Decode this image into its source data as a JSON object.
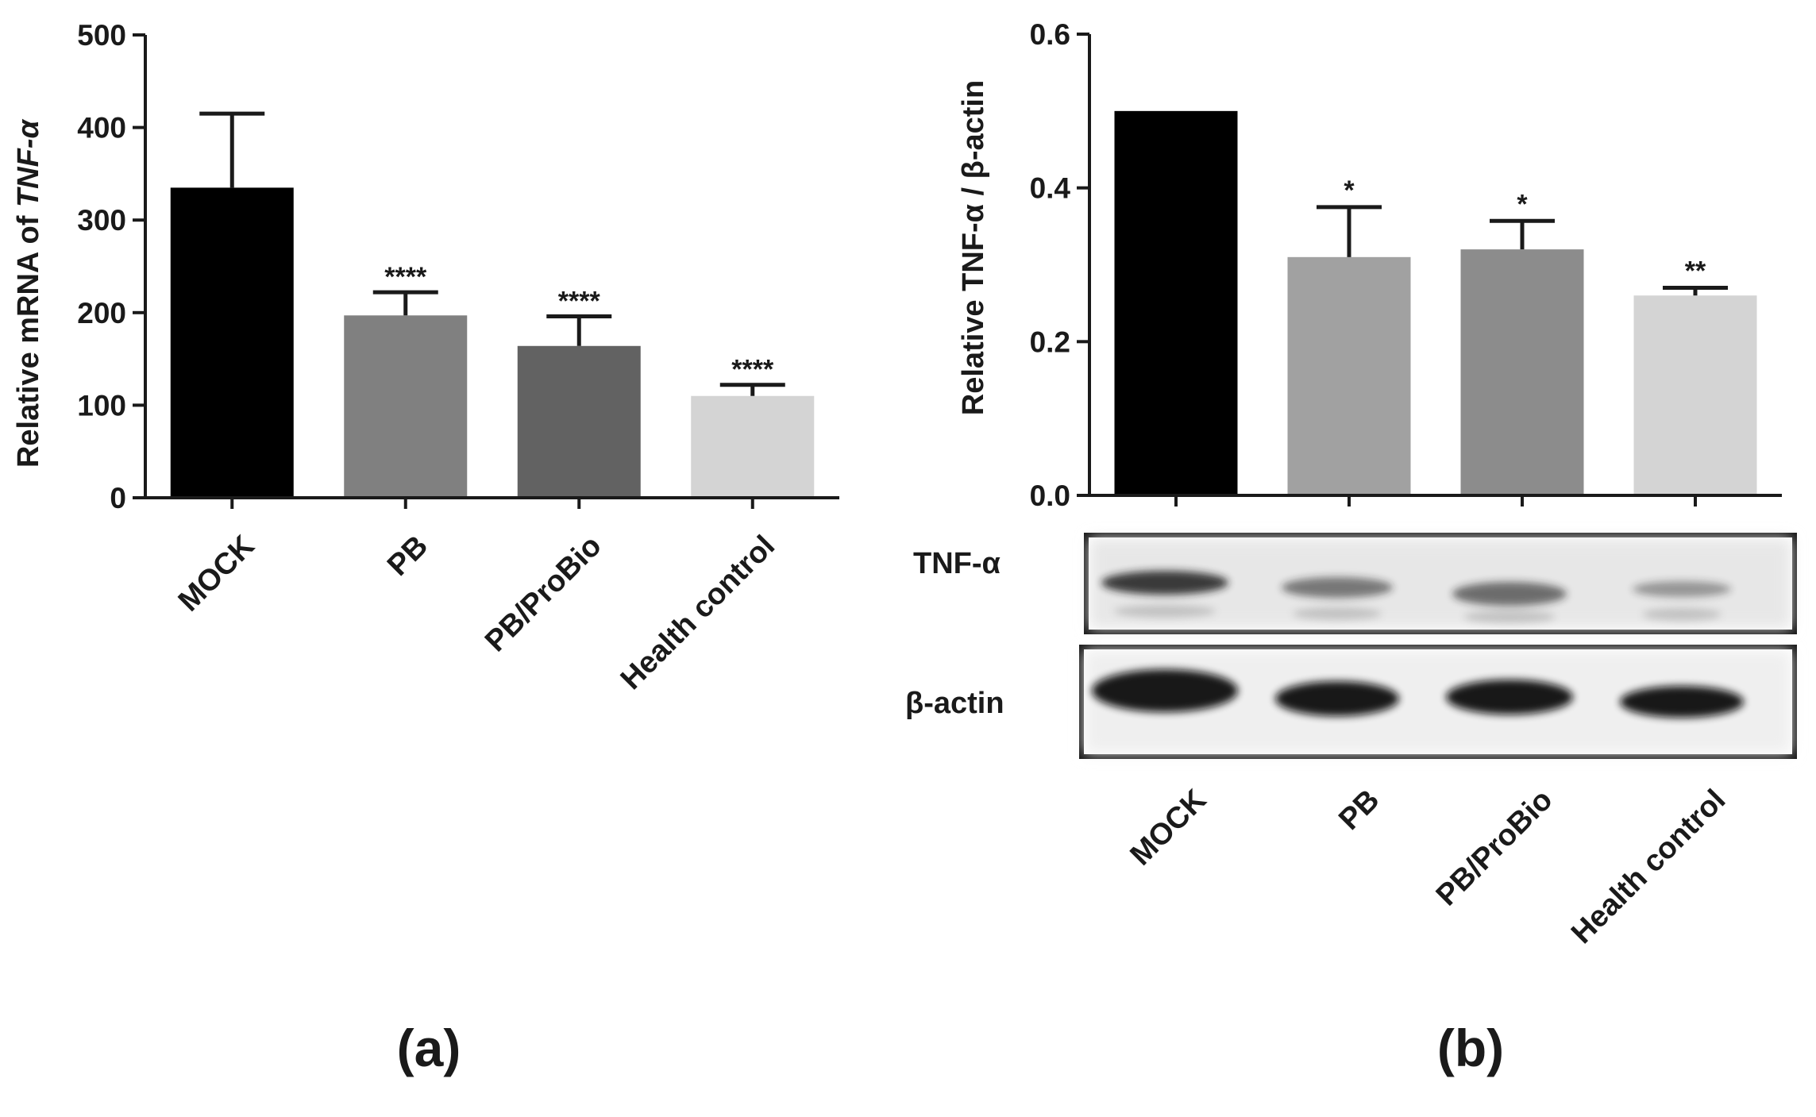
{
  "chart_data": [
    {
      "panel": "(a)",
      "type": "bar",
      "ylabel": "Relative mRNA of TNF-α",
      "ylabel_plain": "Relative mRNA of ",
      "ylabel_italic": "TNF-α",
      "ylim": [
        0,
        500
      ],
      "yticks": [
        0,
        100,
        200,
        300,
        400,
        500
      ],
      "categories": [
        "MOCK",
        "PB",
        "PB/ProBio",
        "Health control"
      ],
      "values": [
        335,
        197,
        164,
        110
      ],
      "errors": [
        80,
        25,
        32,
        12
      ],
      "significance": [
        "",
        "****",
        "****",
        "****"
      ],
      "colors": [
        "#000000",
        "#808080",
        "#626262",
        "#d4d4d4"
      ]
    },
    {
      "panel": "(b)",
      "type": "bar",
      "ylabel": "Relative TNF-α / β-actin",
      "ylim": [
        0,
        0.6
      ],
      "yticks": [
        "0.0",
        "0.2",
        "0.4",
        "0.6"
      ],
      "categories": [
        "MOCK",
        "PB",
        "PB/ProBio",
        "Health control"
      ],
      "values": [
        0.5,
        0.31,
        0.32,
        0.26
      ],
      "errors": [
        0,
        0.065,
        0.037,
        0.01
      ],
      "significance": [
        "",
        "*",
        "*",
        "**"
      ],
      "colors": [
        "#000000",
        "#a1a1a1",
        "#8c8c8c",
        "#d4d4d4"
      ],
      "blot_bands": [
        "TNF-α",
        "β-actin"
      ]
    }
  ],
  "panel_labels": [
    "(a)",
    "(b)"
  ]
}
